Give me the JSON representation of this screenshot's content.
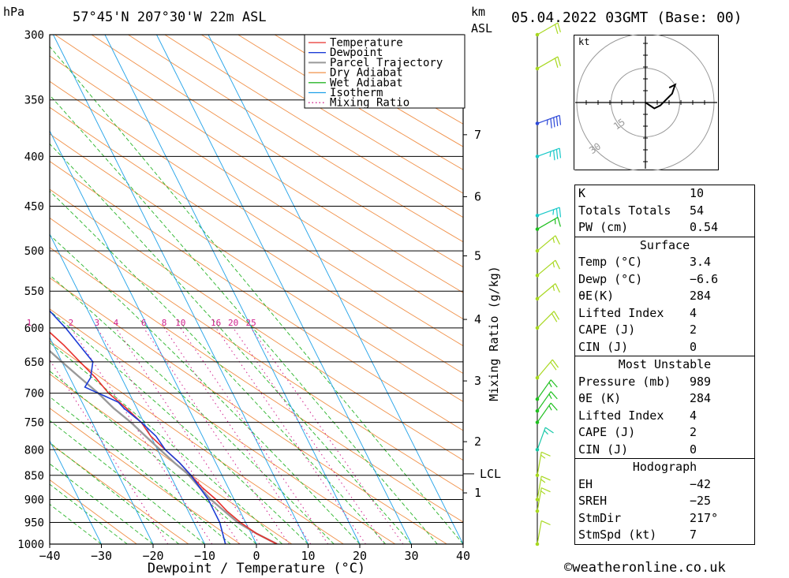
{
  "header": {
    "hpa_label": "hPa",
    "location": "57°45'N  207°30'W  22m  ASL",
    "km_label": "km",
    "asl_label": "ASL",
    "datetime": "05.04.2022  03GMT  (Base: 00)"
  },
  "chart_data": {
    "type": "line",
    "xlabel": "Dewpoint / Temperature (°C)",
    "ylabel": "",
    "secondary_ylabel": "Mixing Ratio (g/kg)",
    "x_ticks": [
      -40,
      -30,
      -20,
      -10,
      0,
      10,
      20,
      30,
      40
    ],
    "x_tick_labels": [
      "−40",
      "−30",
      "−20",
      "−10",
      "0",
      "10",
      "20",
      "30",
      "40"
    ],
    "pressure_levels": [
      300,
      350,
      400,
      450,
      500,
      550,
      600,
      650,
      700,
      750,
      800,
      850,
      900,
      950,
      1000
    ],
    "km_ticks": [
      {
        "label": "7",
        "p": 380
      },
      {
        "label": "6",
        "p": 440
      },
      {
        "label": "5",
        "p": 506
      },
      {
        "label": "4",
        "p": 588
      },
      {
        "label": "3",
        "p": 680
      },
      {
        "label": "2",
        "p": 785
      },
      {
        "label": "1",
        "p": 886
      }
    ],
    "lcl": {
      "label": "LCL",
      "p": 847
    },
    "mixing_ratio_labels": [
      "1",
      "2",
      "3",
      "4",
      "6",
      "8",
      "10",
      "16",
      "20",
      "25"
    ],
    "legend": [
      "Temperature",
      "Dewpoint",
      "Parcel Trajectory",
      "Dry Adiabat",
      "Wet Adiabat",
      "Isotherm",
      "Mixing Ratio"
    ],
    "legend_placement": "top-right",
    "series": [
      {
        "name": "Temperature",
        "color": "#e8302c",
        "points": [
          [
            4,
            1000
          ],
          [
            1,
            975
          ],
          [
            -1,
            950
          ],
          [
            -2.5,
            925
          ],
          [
            -3.5,
            900
          ],
          [
            -5,
            875
          ],
          [
            -6,
            850
          ],
          [
            -7,
            825
          ],
          [
            -8.5,
            800
          ],
          [
            -10,
            775
          ],
          [
            -10.5,
            750
          ],
          [
            -12,
            725
          ],
          [
            -14,
            700
          ],
          [
            -15,
            675
          ],
          [
            -16.5,
            650
          ],
          [
            -18,
            625
          ],
          [
            -20,
            600
          ],
          [
            -20.5,
            575
          ],
          [
            -21,
            560
          ],
          [
            -22.5,
            550
          ],
          [
            -24,
            525
          ],
          [
            -26,
            500
          ],
          [
            -28,
            475
          ],
          [
            -30,
            450
          ],
          [
            -32,
            425
          ],
          [
            -34,
            400
          ],
          [
            -36,
            375
          ],
          [
            -38,
            358
          ],
          [
            -39,
            352
          ],
          [
            -38,
            347
          ]
        ]
      },
      {
        "name": "Dewpoint",
        "color": "#1c3cd6",
        "points": [
          [
            -6,
            1000
          ],
          [
            -5.5,
            975
          ],
          [
            -5,
            950
          ],
          [
            -5,
            925
          ],
          [
            -5,
            900
          ],
          [
            -5.5,
            875
          ],
          [
            -6,
            850
          ],
          [
            -7,
            825
          ],
          [
            -8.5,
            800
          ],
          [
            -9,
            775
          ],
          [
            -10.5,
            750
          ],
          [
            -12.5,
            725
          ],
          [
            -13,
            715
          ],
          [
            -15,
            705
          ],
          [
            -17,
            695
          ],
          [
            -18,
            690
          ],
          [
            -16,
            675
          ],
          [
            -14,
            650
          ],
          [
            -15,
            625
          ],
          [
            -16,
            600
          ],
          [
            -17.5,
            575
          ],
          [
            -18,
            565
          ],
          [
            -19,
            555
          ],
          [
            -19.5,
            550
          ],
          [
            -21,
            525
          ],
          [
            -23,
            500
          ],
          [
            -25,
            490
          ],
          [
            -28,
            470
          ],
          [
            -30,
            450
          ],
          [
            -31,
            440
          ],
          [
            -31,
            430
          ],
          [
            -32,
            423
          ],
          [
            -31,
            417
          ],
          [
            -31,
            410
          ],
          [
            -31.5,
            400
          ],
          [
            -33,
            392
          ],
          [
            -34,
            385
          ],
          [
            -34,
            375
          ],
          [
            -34,
            368
          ],
          [
            -33,
            360
          ],
          [
            -34,
            358
          ],
          [
            -40,
            357
          ],
          [
            -55,
            352
          ]
        ]
      },
      {
        "name": "Parcel Trajectory",
        "color": "#999999",
        "points": [
          [
            4,
            1000
          ],
          [
            1,
            975
          ],
          [
            -1.5,
            950
          ],
          [
            -3,
            925
          ],
          [
            -4.5,
            900
          ],
          [
            -5.5,
            875
          ],
          [
            -6.5,
            847
          ],
          [
            -8,
            825
          ],
          [
            -9.5,
            800
          ],
          [
            -11,
            775
          ],
          [
            -12.5,
            750
          ],
          [
            -14.5,
            725
          ],
          [
            -16,
            700
          ],
          [
            -18,
            675
          ],
          [
            -20,
            650
          ],
          [
            -22,
            625
          ],
          [
            -24,
            600
          ],
          [
            -26.5,
            575
          ],
          [
            -29,
            550
          ],
          [
            -31.5,
            525
          ],
          [
            -34.5,
            500
          ],
          [
            -37.5,
            475
          ],
          [
            -41,
            450
          ],
          [
            -44.5,
            425
          ],
          [
            -48.5,
            400
          ],
          [
            -52.5,
            375
          ],
          [
            -57,
            350
          ],
          [
            -61,
            330
          ],
          [
            -66,
            300
          ]
        ]
      }
    ]
  },
  "wind_barbs": [
    {
      "p": 300,
      "dir": 240,
      "spd": 20,
      "color": "#a8d820"
    },
    {
      "p": 325,
      "dir": 240,
      "spd": 20,
      "color": "#a8d820"
    },
    {
      "p": 370,
      "dir": 250,
      "spd": 45,
      "color": "#2c48d8"
    },
    {
      "p": 400,
      "dir": 250,
      "spd": 35,
      "color": "#18c8c8"
    },
    {
      "p": 460,
      "dir": 250,
      "spd": 25,
      "color": "#18c8c8"
    },
    {
      "p": 475,
      "dir": 240,
      "spd": 15,
      "color": "#20c020"
    },
    {
      "p": 500,
      "dir": 230,
      "spd": 15,
      "color": "#a8d820"
    },
    {
      "p": 530,
      "dir": 230,
      "spd": 15,
      "color": "#a8d820"
    },
    {
      "p": 560,
      "dir": 230,
      "spd": 15,
      "color": "#a8d820"
    },
    {
      "p": 600,
      "dir": 225,
      "spd": 20,
      "color": "#a8d820"
    },
    {
      "p": 675,
      "dir": 220,
      "spd": 20,
      "color": "#a8d820"
    },
    {
      "p": 710,
      "dir": 215,
      "spd": 15,
      "color": "#20c020"
    },
    {
      "p": 730,
      "dir": 215,
      "spd": 15,
      "color": "#20c020"
    },
    {
      "p": 750,
      "dir": 215,
      "spd": 15,
      "color": "#20c020"
    },
    {
      "p": 800,
      "dir": 200,
      "spd": 15,
      "color": "#18c8a8"
    },
    {
      "p": 850,
      "dir": 190,
      "spd": 15,
      "color": "#a8d820"
    },
    {
      "p": 900,
      "dir": 190,
      "spd": 15,
      "color": "#a8d820"
    },
    {
      "p": 925,
      "dir": 190,
      "spd": 15,
      "color": "#a8d820"
    },
    {
      "p": 1000,
      "dir": 190,
      "spd": 10,
      "color": "#a8d820"
    }
  ],
  "hodograph": {
    "unit_label": "kt",
    "ring_labels": [
      "15",
      "30",
      "45"
    ],
    "trace": [
      [
        0,
        0
      ],
      [
        3,
        -2
      ],
      [
        5,
        -1
      ],
      [
        9,
        3
      ],
      [
        10,
        6
      ],
      [
        8,
        5
      ]
    ]
  },
  "indices": {
    "rows": [
      {
        "label": "K",
        "value": "10"
      },
      {
        "label": "Totals Totals",
        "value": "54"
      },
      {
        "label": "PW (cm)",
        "value": "0.54"
      }
    ]
  },
  "surface": {
    "title": "Surface",
    "rows": [
      {
        "label": "Temp (°C)",
        "value": "3.4"
      },
      {
        "label": "Dewp (°C)",
        "value": "−6.6"
      },
      {
        "label": "θE(K)",
        "value": "284"
      },
      {
        "label": "Lifted Index",
        "value": "4"
      },
      {
        "label": "CAPE (J)",
        "value": "2"
      },
      {
        "label": "CIN (J)",
        "value": "0"
      }
    ]
  },
  "most_unstable": {
    "title": "Most Unstable",
    "rows": [
      {
        "label": "Pressure (mb)",
        "value": "989"
      },
      {
        "label": "θE (K)",
        "value": "284"
      },
      {
        "label": "Lifted Index",
        "value": "4"
      },
      {
        "label": "CAPE (J)",
        "value": "2"
      },
      {
        "label": "CIN (J)",
        "value": "0"
      }
    ]
  },
  "hodograph_panel": {
    "title": "Hodograph",
    "rows": [
      {
        "label": "EH",
        "value": "−42"
      },
      {
        "label": "SREH",
        "value": "−25"
      },
      {
        "label": "StmDir",
        "value": "217°"
      },
      {
        "label": "StmSpd (kt)",
        "value": "7"
      }
    ]
  },
  "footer": {
    "copyright": "©weatheronline.co.uk"
  }
}
